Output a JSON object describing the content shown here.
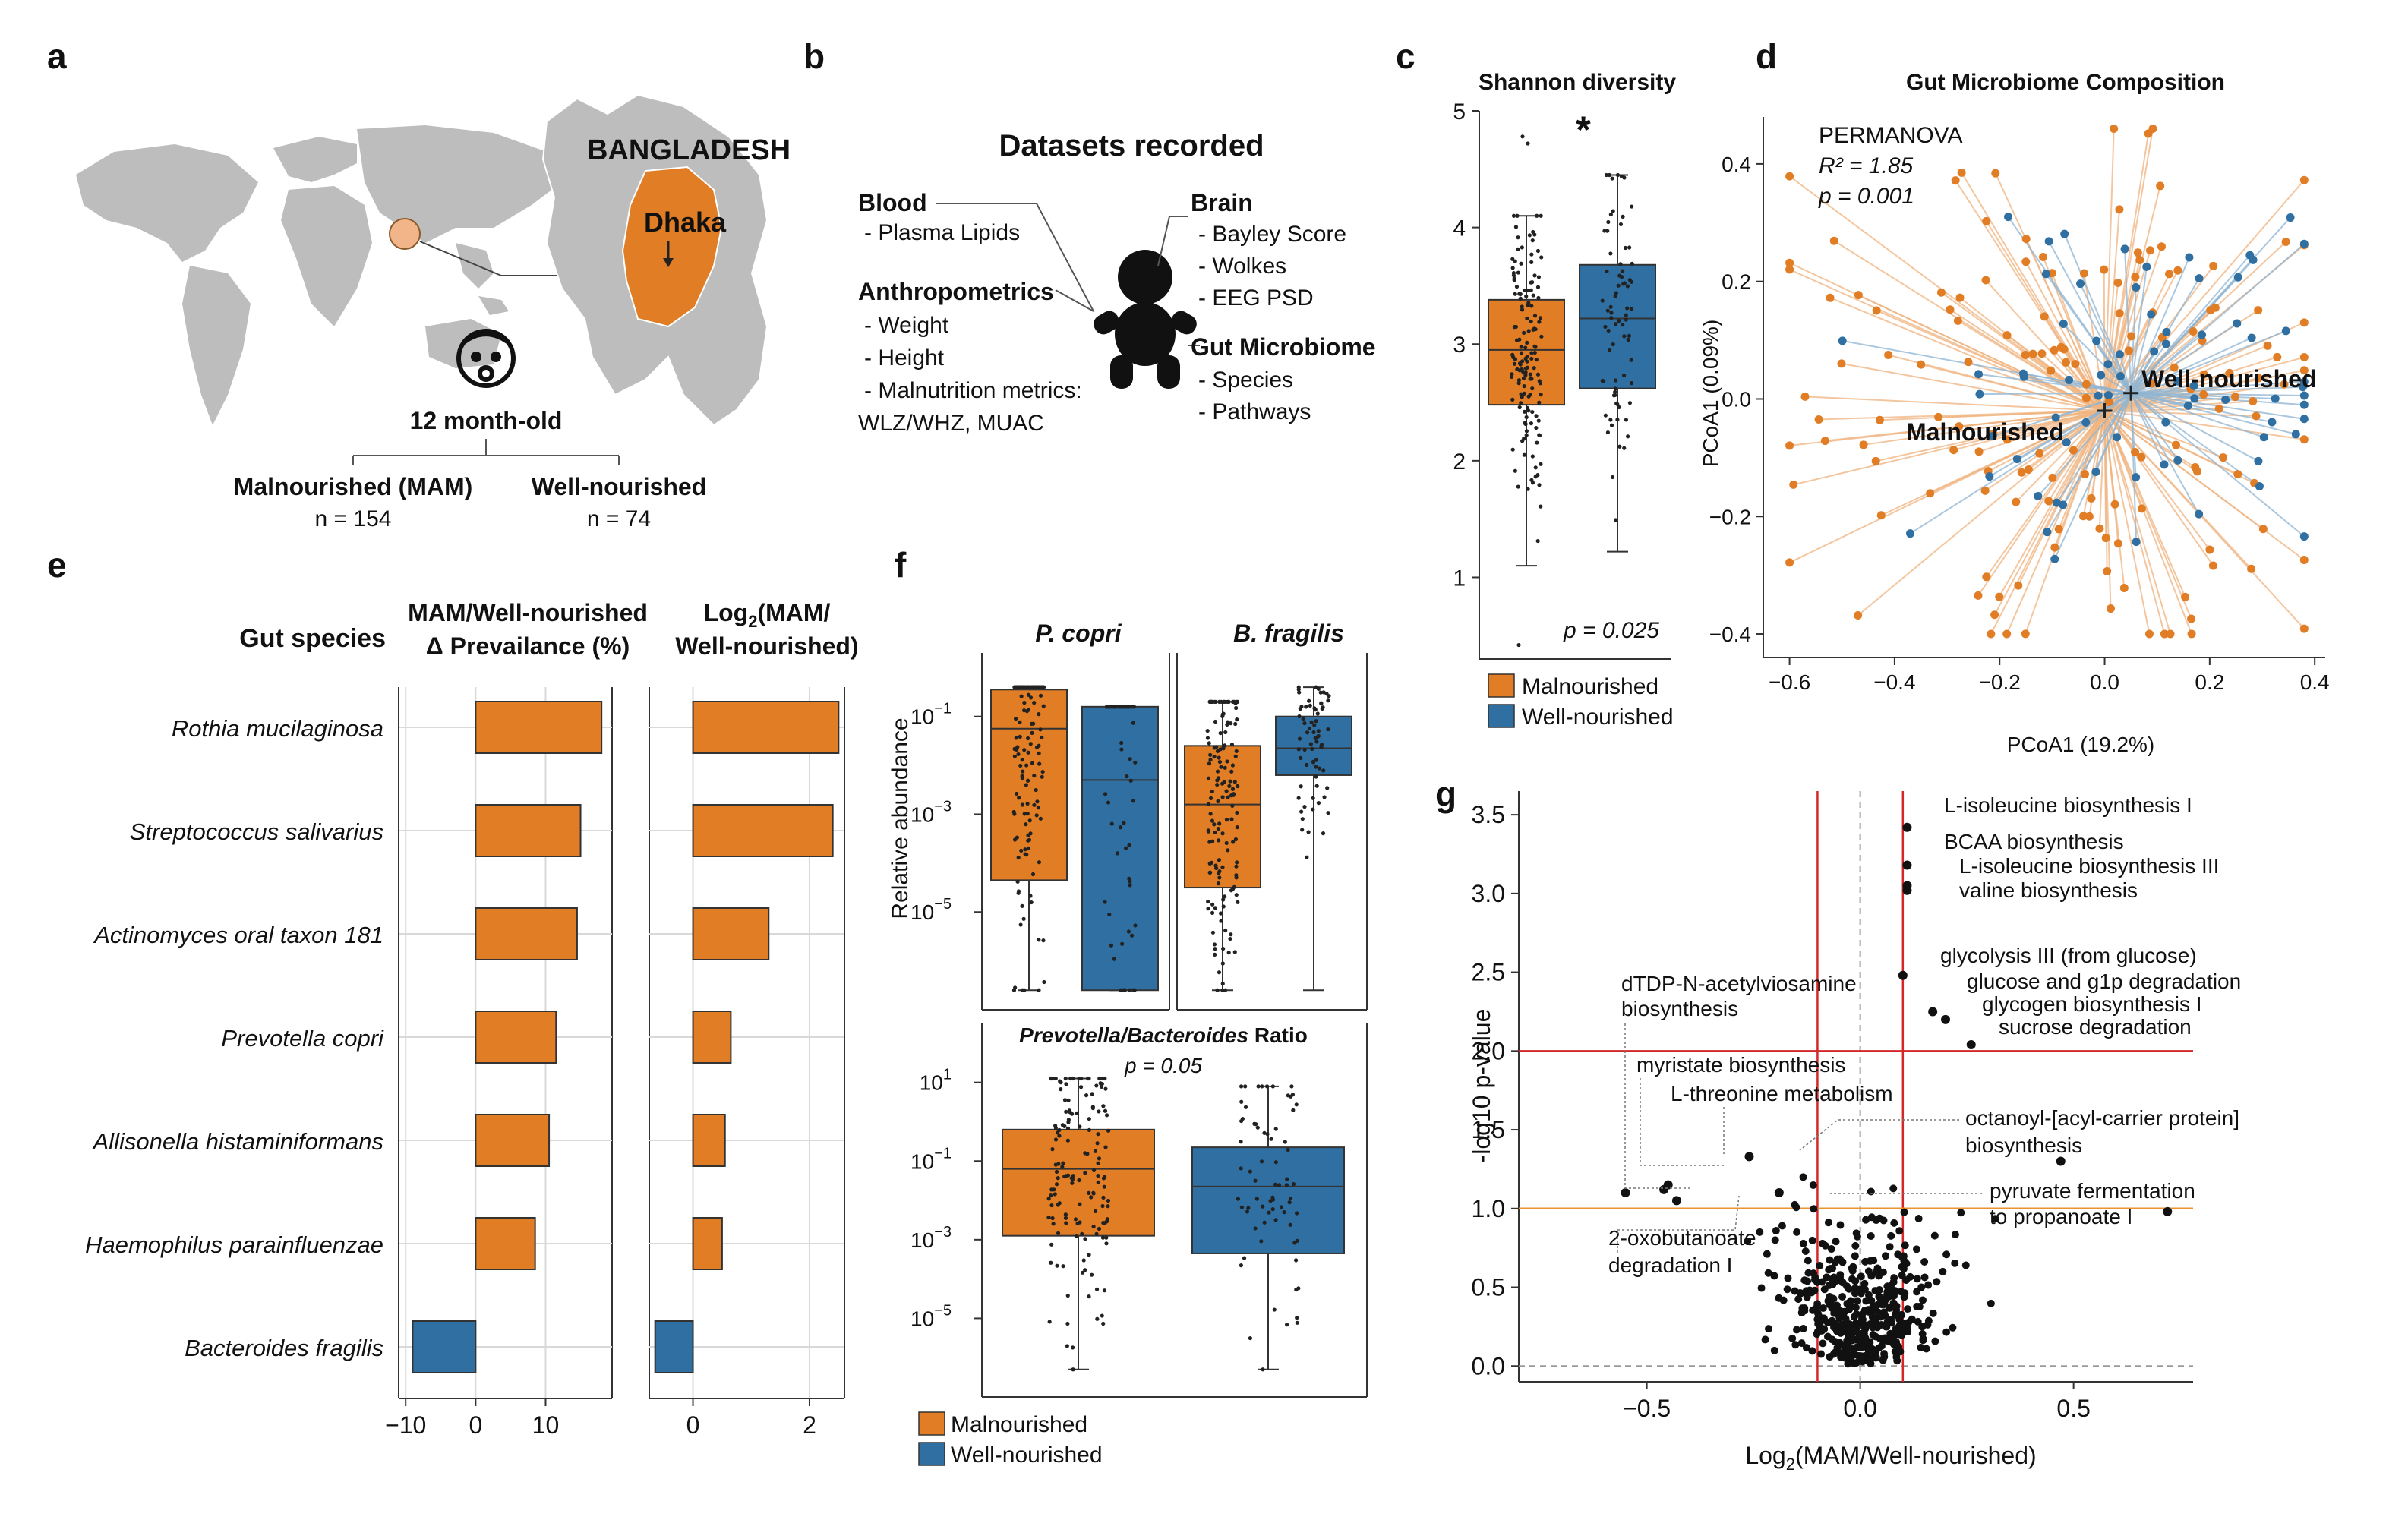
{
  "colors": {
    "malnourished": "#E07D25",
    "well": "#2F6FA1",
    "red_line": "#D62728",
    "orange_line": "#E9922F",
    "purple": "#7B2A8C",
    "magenta": "#8B1D56",
    "map_gray": "#BDBDBD"
  },
  "panel_letters": {
    "a": "a",
    "b": "b",
    "c": "c",
    "d": "d",
    "e": "e",
    "f": "f",
    "g": "g"
  },
  "panel_a": {
    "country": "BANGLADESH",
    "city": "Dhaka",
    "age": "12 month-old",
    "groups": [
      {
        "label": "Malnourished (MAM)",
        "n": "n = 154"
      },
      {
        "label": "Well-nourished",
        "n": "n = 74"
      }
    ]
  },
  "panel_b": {
    "title": "Datasets recorded",
    "left": [
      {
        "head": "Blood",
        "items": [
          "- Plasma Lipids"
        ]
      },
      {
        "head": "Anthropometrics",
        "items": [
          "- Weight",
          "- Height",
          "- Malnutrition metrics:",
          "WLZ/WHZ, MUAC"
        ]
      }
    ],
    "right": [
      {
        "head": "Brain",
        "items": [
          "- Bayley Score",
          "- Wolkes",
          "- EEG PSD"
        ]
      },
      {
        "head": "Gut Microbiome",
        "items": [
          "- Species",
          "- Pathways"
        ]
      }
    ]
  },
  "legend": {
    "mal": "Malnourished",
    "well": "Well-nourished"
  },
  "chart_data": [
    {
      "id": "c",
      "type": "box",
      "title": "Shannon diversity",
      "ylim": [
        0.3,
        5.0
      ],
      "yticks": [
        1,
        2,
        3,
        4,
        5
      ],
      "groups": [
        {
          "name": "Malnourished",
          "q1": 2.48,
          "median": 2.95,
          "q3": 3.38,
          "whisker_low": 1.1,
          "whisker_high": 4.1
        },
        {
          "name": "Well-nourished",
          "q1": 2.62,
          "median": 3.22,
          "q3": 3.68,
          "whisker_low": 1.22,
          "whisker_high": 4.45
        }
      ],
      "significance": "*",
      "pvalue": "p = 0.025"
    },
    {
      "id": "d",
      "type": "scatter",
      "title": "Gut Microbiome Composition",
      "xlabel": "PCoA1 (19.2%)",
      "ylabel": "PCoA1 (0.09%)",
      "xlim": [
        -0.65,
        0.42
      ],
      "ylim": [
        -0.44,
        0.48
      ],
      "xticks": [
        -0.6,
        -0.4,
        -0.2,
        0.0,
        0.2,
        0.4
      ],
      "yticks": [
        -0.4,
        -0.2,
        0.0,
        0.2,
        0.4
      ],
      "stats": [
        "PERMANOVA",
        "R² = 1.85",
        "p = 0.001"
      ],
      "centroids": [
        {
          "name": "Malnourished",
          "x": 0.0,
          "y": -0.02
        },
        {
          "name": "Well-nourished",
          "x": 0.05,
          "y": 0.01
        }
      ]
    },
    {
      "id": "e1",
      "type": "bar",
      "title": "MAM/Well-nourished Δ Prevailance (%)",
      "category_title": "Gut species",
      "categories": [
        "Rothia mucilaginosa",
        "Streptococcus salivarius",
        "Actinomyces oral taxon 181",
        "Prevotella copri",
        "Allisonella histaminiformans",
        "Haemophilus parainfluenzae",
        "Bacteroides fragilis"
      ],
      "values": [
        18,
        15,
        14.5,
        11.5,
        10.5,
        8.5,
        -9
      ],
      "xlim": [
        -11,
        19.5
      ],
      "xticks": [
        -10,
        0,
        10
      ]
    },
    {
      "id": "e2",
      "type": "bar",
      "title": "Log2(MAM/Well-nourished)",
      "values": [
        2.5,
        2.4,
        1.3,
        0.65,
        0.55,
        0.5,
        -0.65
      ],
      "xlim": [
        -0.75,
        2.6
      ],
      "xticks": [
        0,
        2
      ]
    },
    {
      "id": "f",
      "type": "box",
      "ylabel": "Relative abundance",
      "yscale": "log",
      "subplots": [
        {
          "title": "P. copri",
          "groups": [
            {
              "name": "Malnourished",
              "q1": -4.35,
              "median": -1.25,
              "q3": -0.45,
              "whisker_low": -6.6,
              "whisker_high": -0.4
            },
            {
              "name": "Well-nourished",
              "q1": -6.6,
              "median": -2.3,
              "q3": -0.8,
              "whisker_low": -6.6,
              "whisker_high": -0.8
            }
          ]
        },
        {
          "title": "B. fragilis",
          "groups": [
            {
              "name": "Malnourished",
              "q1": -4.5,
              "median": -2.8,
              "q3": -1.6,
              "whisker_low": -6.6,
              "whisker_high": -0.7
            },
            {
              "name": "Well-nourished",
              "q1": -2.2,
              "median": -1.65,
              "q3": -1.0,
              "whisker_low": -6.6,
              "whisker_high": -0.4
            }
          ]
        },
        {
          "title": "Prevotella/Bacteroides Ratio",
          "pvalue": "p = 0.05",
          "groups": [
            {
              "name": "Malnourished",
              "q1": -2.9,
              "median": -1.2,
              "q3": -0.2,
              "whisker_low": -6.3,
              "whisker_high": 1.1
            },
            {
              "name": "Well-nourished",
              "q1": -3.35,
              "median": -1.65,
              "q3": -0.65,
              "whisker_low": -6.3,
              "whisker_high": 0.9
            }
          ]
        }
      ]
    },
    {
      "id": "g",
      "type": "scatter",
      "xlabel": "Log2(MAM/Well-nourished)",
      "ylabel": "-log10 p-value",
      "xlim": [
        -0.8,
        0.78
      ],
      "ylim": [
        -0.1,
        3.65
      ],
      "xticks": [
        -0.5,
        0.0,
        0.5
      ],
      "yticks": [
        0.0,
        0.5,
        1.0,
        1.5,
        2.0,
        2.5,
        3.0,
        3.5
      ],
      "thresholds": {
        "x": [
          -0.1,
          0.1
        ],
        "y_red": 2.0,
        "y_orange": 1.0
      },
      "labels": [
        "L-isoleucine biosynthesis I",
        "BCAA biosynthesis",
        "L-isoleucine biosynthesis III",
        "valine biosynthesis",
        "glycolysis III (from glucose)",
        "glucose and g1p degradation",
        "glycogen biosynthesis I",
        "sucrose degradation",
        "dTDP-N-acetylviosamine",
        "biosynthesis",
        "myristate biosynthesis",
        "L-threonine metabolism",
        "octanoyl-[acyl-carrier protein]",
        "biosynthesis",
        "pyruvate fermentation",
        "to propanoate I",
        "2-oxobutanoate",
        "degradation I"
      ]
    }
  ]
}
